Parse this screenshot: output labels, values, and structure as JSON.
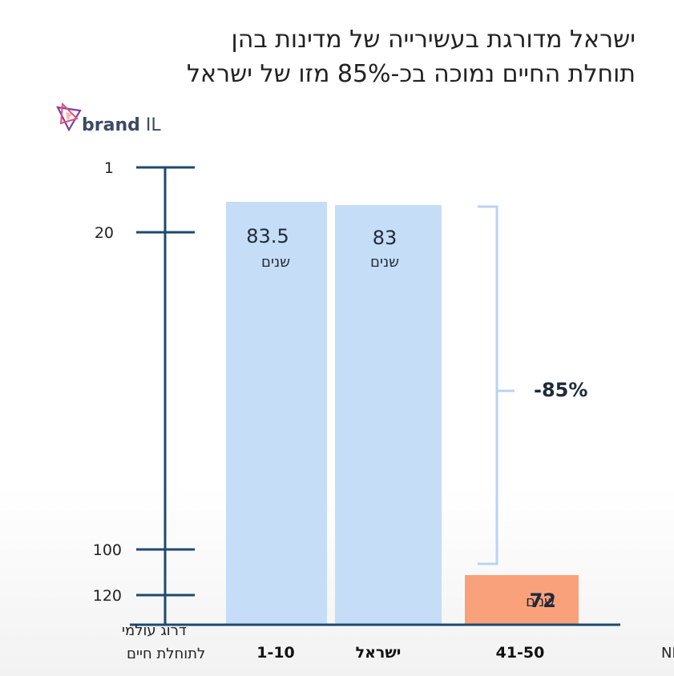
{
  "title_lines": [
    "ישראל מדורגת בעשירייה של מדינות בהן",
    "תוחלת החיים נמוכה בכ-85% מזו של ישראל"
  ],
  "logo": {
    "text_bold": "brand",
    "text_light": "IL"
  },
  "chart_data": {
    "type": "bar",
    "title": "ישראל מדורגת בעשירייה של מדינות בהן תוחלת החיים נמוכה בכ-85% מזו של ישראל",
    "y_axis": {
      "label_lines": [
        "דרוג עולמי",
        "לתוחלת חיים"
      ],
      "ticks": [
        "1",
        "20",
        "100",
        "120"
      ],
      "inverted": true
    },
    "x_axis": {
      "label": "דרוג NBI",
      "categories": [
        "1-10",
        "ישראל",
        "41-50"
      ]
    },
    "values": [
      83.5,
      83,
      72
    ],
    "value_labels": [
      "83.5",
      "83",
      "72"
    ],
    "unit": "שנים",
    "bar_colors": [
      "#c5ddf6",
      "#c5ddf6",
      "#f9a17a"
    ],
    "annotation": {
      "text": "-85%"
    }
  }
}
